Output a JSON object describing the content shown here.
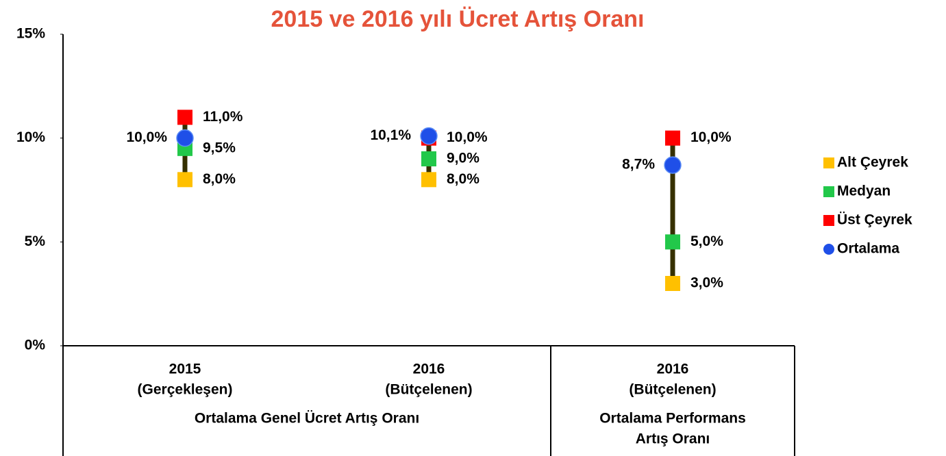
{
  "chart_data": {
    "type": "hilo",
    "title": "2015 ve 2016 yılı Ücret Artış Oranı",
    "categories": [
      [
        "2015",
        "(Gerçekleşen)"
      ],
      [
        "2016",
        "(Bütçelenen)"
      ],
      [
        "2016",
        "(Bütçelenen)"
      ]
    ],
    "groups": [
      {
        "label": [
          "Ortalama Genel Ücret Artış Oranı"
        ],
        "span": 2
      },
      {
        "label": [
          "Ortalama Performans",
          "Artış Oranı"
        ],
        "span": 1
      }
    ],
    "series": [
      {
        "name": "Alt Çeyrek",
        "color": "#ffc000",
        "marker": "square",
        "values": [
          8,
          8,
          3
        ],
        "value_labels": [
          "8,0%",
          "8,0%",
          "3,0%"
        ]
      },
      {
        "name": "Medyan",
        "color": "#22c84a",
        "marker": "square",
        "values": [
          9.5,
          9,
          5
        ],
        "value_labels": [
          "9,5%",
          "9,0%",
          "5,0%"
        ]
      },
      {
        "name": "Üst Çeyrek",
        "color": "#ff0000",
        "marker": "square",
        "values": [
          11,
          10,
          10
        ],
        "value_labels": [
          "11,0%",
          "10,0%",
          "10,0%"
        ]
      },
      {
        "name": "Ortalama",
        "color": "#1f4fe8",
        "marker": "circle",
        "values": [
          10,
          10.1,
          8.7
        ],
        "value_labels": [
          "10,0%",
          "10,1%",
          "8,7%"
        ]
      }
    ],
    "ylim": [
      0,
      15
    ],
    "yticks": [
      {
        "value": 0,
        "label": "0%"
      },
      {
        "value": 5,
        "label": "5%"
      },
      {
        "value": 10,
        "label": "10%"
      },
      {
        "value": 15,
        "label": "15%"
      }
    ],
    "line_color": "#363000",
    "legend": "right"
  }
}
